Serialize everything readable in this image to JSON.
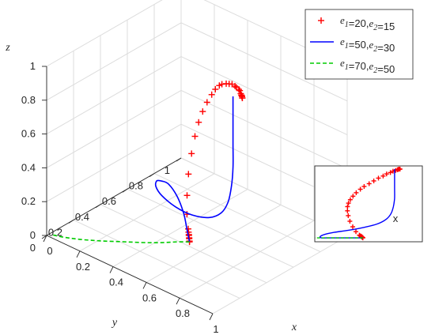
{
  "chart_data": {
    "type": "line3d",
    "axes": {
      "xlabel": "x",
      "ylabel": "y",
      "zlabel": "z",
      "xlim": [
        0,
        1
      ],
      "ylim": [
        0,
        1
      ],
      "zlim": [
        0,
        1
      ],
      "x_ticks": [
        "0",
        "0.2",
        "0.4",
        "0.6",
        "0.8",
        "1"
      ],
      "y_ticks": [
        "0",
        "0.2",
        "0.4",
        "0.6",
        "0.8",
        "1"
      ],
      "z_ticks": [
        "0",
        "0.2",
        "0.4",
        "0.6",
        "0.8",
        "1"
      ],
      "grid": true
    },
    "legend": {
      "placement": "top-right",
      "entries": [
        {
          "e1": "20",
          "e2": "15",
          "marker": "+",
          "line": "none",
          "color": "#ff0000"
        },
        {
          "e1": "50",
          "e2": "30",
          "marker": "none",
          "line": "solid",
          "color": "#0000ff"
        },
        {
          "e1": "70",
          "e2": "50",
          "marker": "none",
          "line": "dashed",
          "color": "#00cc00"
        }
      ]
    },
    "series": [
      {
        "style": "markers",
        "color": "#ff0000",
        "points": [
          [
            0.52,
            0.42,
            0.01
          ],
          [
            0.52,
            0.42,
            0.015
          ],
          [
            0.51,
            0.43,
            0.02
          ],
          [
            0.51,
            0.43,
            0.025
          ],
          [
            0.5,
            0.44,
            0.03
          ],
          [
            0.5,
            0.44,
            0.035
          ],
          [
            0.49,
            0.45,
            0.04
          ],
          [
            0.48,
            0.46,
            0.05
          ],
          [
            0.44,
            0.5,
            0.1
          ],
          [
            0.4,
            0.55,
            0.17
          ],
          [
            0.36,
            0.61,
            0.25
          ],
          [
            0.33,
            0.67,
            0.33
          ],
          [
            0.31,
            0.72,
            0.4
          ],
          [
            0.3,
            0.76,
            0.46
          ],
          [
            0.3,
            0.79,
            0.51
          ],
          [
            0.31,
            0.81,
            0.56
          ],
          [
            0.33,
            0.82,
            0.61
          ],
          [
            0.36,
            0.81,
            0.66
          ],
          [
            0.4,
            0.79,
            0.71
          ],
          [
            0.44,
            0.76,
            0.75
          ],
          [
            0.49,
            0.73,
            0.79
          ],
          [
            0.54,
            0.69,
            0.83
          ],
          [
            0.59,
            0.65,
            0.87
          ],
          [
            0.64,
            0.61,
            0.9
          ],
          [
            0.68,
            0.57,
            0.93
          ],
          [
            0.72,
            0.54,
            0.95
          ],
          [
            0.75,
            0.51,
            0.97
          ],
          [
            0.78,
            0.48,
            0.98
          ],
          [
            0.8,
            0.46,
            0.99
          ],
          [
            0.81,
            0.45,
            0.995
          ],
          [
            0.82,
            0.44,
            1.0
          ],
          [
            0.82,
            0.44,
            1.0
          ],
          [
            0.83,
            0.43,
            1.0
          ],
          [
            0.83,
            0.43,
            1.0
          ]
        ]
      },
      {
        "style": "solid",
        "color": "#0000ff",
        "points": [
          [
            0.52,
            0.42,
            0.01
          ],
          [
            0.44,
            0.5,
            0.01
          ],
          [
            0.34,
            0.6,
            0.01
          ],
          [
            0.22,
            0.7,
            0.01
          ],
          [
            0.12,
            0.76,
            0.01
          ],
          [
            0.08,
            0.76,
            0.01
          ],
          [
            0.08,
            0.72,
            0.03
          ],
          [
            0.14,
            0.64,
            0.06
          ],
          [
            0.24,
            0.56,
            0.09
          ],
          [
            0.38,
            0.49,
            0.12
          ],
          [
            0.52,
            0.44,
            0.16
          ],
          [
            0.64,
            0.42,
            0.21
          ],
          [
            0.72,
            0.41,
            0.28
          ],
          [
            0.76,
            0.41,
            0.36
          ],
          [
            0.78,
            0.41,
            0.46
          ],
          [
            0.79,
            0.41,
            0.58
          ],
          [
            0.79,
            0.41,
            0.72
          ],
          [
            0.79,
            0.41,
            0.86
          ],
          [
            0.79,
            0.41,
            0.96
          ],
          [
            0.79,
            0.41,
            1.0
          ]
        ]
      },
      {
        "style": "dashed",
        "color": "#00cc00",
        "points": [
          [
            0.52,
            0.42,
            0.01
          ],
          [
            0.48,
            0.38,
            0.01
          ],
          [
            0.43,
            0.32,
            0.01
          ],
          [
            0.37,
            0.26,
            0.01
          ],
          [
            0.3,
            0.2,
            0.01
          ],
          [
            0.22,
            0.13,
            0.01
          ],
          [
            0.14,
            0.07,
            0.01
          ],
          [
            0.07,
            0.03,
            0.01
          ],
          [
            0.02,
            0.01,
            0.01
          ]
        ]
      }
    ],
    "inset": {
      "label": "x"
    }
  }
}
